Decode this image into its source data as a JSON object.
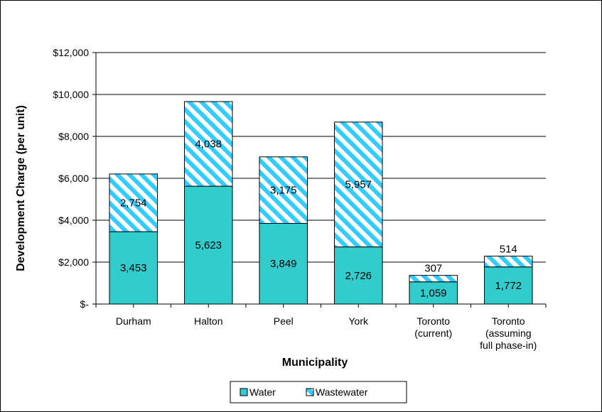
{
  "chart_data": {
    "type": "bar",
    "stacked": true,
    "categories": [
      "Durham",
      "Halton",
      "Peel",
      "York",
      "Toronto (current)",
      "Toronto (assuming full phase-in)"
    ],
    "category_lines": [
      [
        "Durham"
      ],
      [
        "Halton"
      ],
      [
        "Peel"
      ],
      [
        "York"
      ],
      [
        "Toronto",
        "(current)"
      ],
      [
        "Toronto",
        "(assuming",
        "full phase-in)"
      ]
    ],
    "series": [
      {
        "name": "Water",
        "values": [
          3453,
          5623,
          3849,
          2726,
          1059,
          1772
        ],
        "labels": [
          "3,453",
          "5,623",
          "3,849",
          "2,726",
          "1,059",
          "1,772"
        ],
        "color": "#33CCCC",
        "pattern": "solid"
      },
      {
        "name": "Wastewater",
        "values": [
          2754,
          4038,
          3175,
          5957,
          307,
          514
        ],
        "labels": [
          "2,754",
          "4,038",
          "3,175",
          "5,957",
          "307",
          "514"
        ],
        "color": "#33CCFF",
        "pattern": "diagonal-stripes"
      }
    ],
    "title": "",
    "xlabel": "Municipality",
    "ylabel": "Development Charge (per unit)",
    "ylim": [
      0,
      12000
    ],
    "yticks": [
      0,
      2000,
      4000,
      6000,
      8000,
      10000,
      12000
    ],
    "ytick_labels": [
      "$-",
      "$2,000",
      "$4,000",
      "$6,000",
      "$8,000",
      "$10,000",
      "$12,000"
    ],
    "grid": true,
    "legend_position": "bottom"
  }
}
